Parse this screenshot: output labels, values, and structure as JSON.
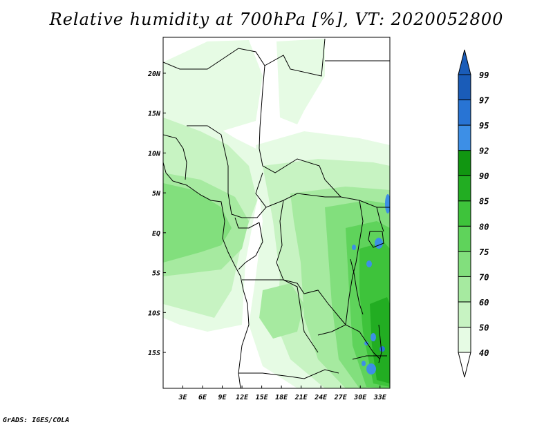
{
  "title": "Relative humidity at 700hPa [%], VT: 2020052800",
  "footer": "GrADS: IGES/COLA",
  "map": {
    "lon_range": [
      0,
      34.5
    ],
    "lat_range": [
      -19.5,
      24.5
    ],
    "lon_ticks": [
      {
        "value": 3,
        "label": "3E"
      },
      {
        "value": 6,
        "label": "6E"
      },
      {
        "value": 9,
        "label": "9E"
      },
      {
        "value": 12,
        "label": "12E"
      },
      {
        "value": 15,
        "label": "15E"
      },
      {
        "value": 18,
        "label": "18E"
      },
      {
        "value": 21,
        "label": "21E"
      },
      {
        "value": 24,
        "label": "24E"
      },
      {
        "value": 27,
        "label": "27E"
      },
      {
        "value": 30,
        "label": "30E"
      },
      {
        "value": 33,
        "label": "33E"
      }
    ],
    "lat_ticks": [
      {
        "value": 20,
        "label": "20N"
      },
      {
        "value": 15,
        "label": "15N"
      },
      {
        "value": 10,
        "label": "10N"
      },
      {
        "value": 5,
        "label": "5N"
      },
      {
        "value": 0,
        "label": "EQ"
      },
      {
        "value": -5,
        "label": "5S"
      },
      {
        "value": -10,
        "label": "10S"
      },
      {
        "value": -15,
        "label": "15S"
      }
    ]
  },
  "colorbar": {
    "levels": [
      "40",
      "50",
      "60",
      "70",
      "75",
      "80",
      "85",
      "90",
      "92",
      "95",
      "97",
      "99"
    ],
    "colors": [
      "#ffffff",
      "#e6fbe4",
      "#c7f3c2",
      "#a6eaa0",
      "#82df7d",
      "#5fd35b",
      "#3ec33b",
      "#22ad22",
      "#119611",
      "#3d8fe6",
      "#2874d4",
      "#1a5cb8"
    ]
  },
  "colors": {
    "very_light_green": "#e6fbe4",
    "light_green": "#c7f3c2",
    "mid_green": "#82df7d",
    "green": "#3ec33b",
    "dark_green": "#22ad22",
    "blue": "#3d8fe6"
  }
}
